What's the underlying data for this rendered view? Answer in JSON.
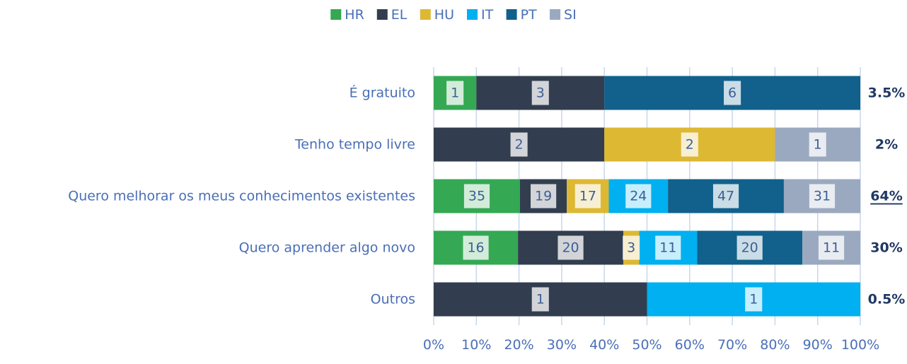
{
  "chart_data": {
    "type": "bar",
    "orientation": "horizontal",
    "stacked": "percent",
    "categories": [
      "É gratuito",
      "Tenho tempo livre",
      "Quero melhorar os meus conhecimentos existentes",
      "Quero aprender algo novo",
      "Outros"
    ],
    "series": [
      {
        "name": "HR",
        "color": "#34a853",
        "values": [
          1,
          null,
          35,
          16,
          null
        ]
      },
      {
        "name": "EL",
        "color": "#323e4f",
        "values": [
          3,
          2,
          19,
          20,
          1
        ]
      },
      {
        "name": "HU",
        "color": "#ddb833",
        "values": [
          null,
          2,
          17,
          3,
          null
        ]
      },
      {
        "name": "IT",
        "color": "#00b0f0",
        "values": [
          null,
          null,
          24,
          11,
          1
        ]
      },
      {
        "name": "PT",
        "color": "#11618c",
        "values": [
          6,
          null,
          47,
          20,
          null
        ]
      },
      {
        "name": "SI",
        "color": "#9aa9bf",
        "values": [
          null,
          1,
          31,
          11,
          null
        ]
      }
    ],
    "totals": {
      "values": [
        3.5,
        2,
        64,
        30,
        0.5
      ],
      "value_labels": [
        "3.5%",
        "2%",
        "64%",
        "30%",
        "0.5%"
      ],
      "underlined": [
        false,
        false,
        true,
        false,
        false
      ]
    },
    "xlim": [
      0,
      100
    ],
    "xticks": [
      {
        "value": 0,
        "label": "0%"
      },
      {
        "value": 10,
        "label": "10%"
      },
      {
        "value": 20,
        "label": "20%"
      },
      {
        "value": 30,
        "label": "30%"
      },
      {
        "value": 40,
        "label": "40%"
      },
      {
        "value": 50,
        "label": "50%"
      },
      {
        "value": 60,
        "label": "60%"
      },
      {
        "value": 70,
        "label": "70%"
      },
      {
        "value": 80,
        "label": "80%"
      },
      {
        "value": 90,
        "label": "90%"
      },
      {
        "value": 100,
        "label": "100%"
      }
    ],
    "grid": true,
    "legend": "top"
  }
}
